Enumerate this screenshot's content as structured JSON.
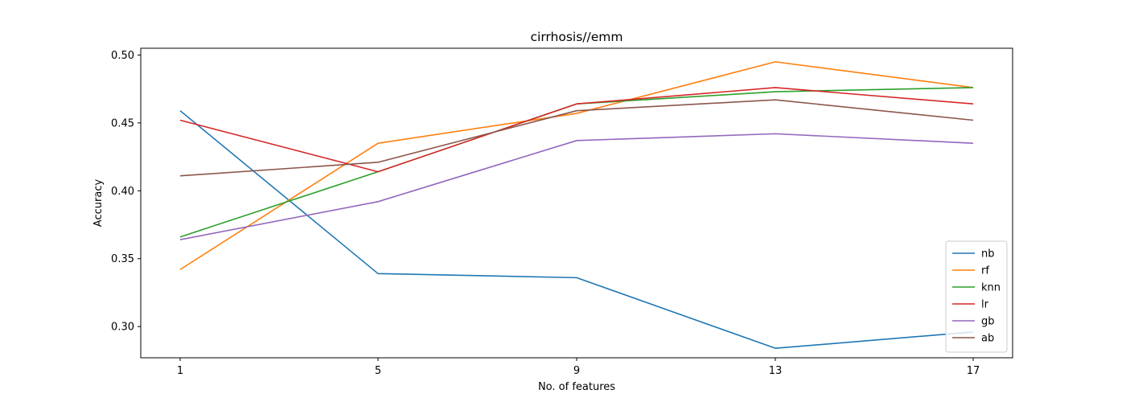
{
  "chart_data": {
    "type": "line",
    "title": "cirrhosis//emm",
    "xlabel": "No. of features",
    "ylabel": "Accuracy",
    "x": [
      1,
      5,
      9,
      13,
      17
    ],
    "x_tick_labels": [
      "1",
      "5",
      "9",
      "13",
      "17"
    ],
    "y_ticks": [
      0.3,
      0.35,
      0.4,
      0.45,
      0.5
    ],
    "y_tick_labels": [
      "0.30",
      "0.35",
      "0.40",
      "0.45",
      "0.50"
    ],
    "ylim": [
      0.277,
      0.505
    ],
    "grid": false,
    "legend_position": "lower-right",
    "series": [
      {
        "name": "nb",
        "color": "#1f77b4",
        "values": [
          0.459,
          0.339,
          0.336,
          0.284,
          0.296
        ]
      },
      {
        "name": "rf",
        "color": "#ff7f0e",
        "values": [
          0.342,
          0.435,
          0.457,
          0.495,
          0.476
        ]
      },
      {
        "name": "knn",
        "color": "#2ca02c",
        "values": [
          0.366,
          0.414,
          0.464,
          0.473,
          0.476
        ]
      },
      {
        "name": "lr",
        "color": "#d62728",
        "values": [
          0.452,
          0.414,
          0.464,
          0.476,
          0.464
        ]
      },
      {
        "name": "gb",
        "color": "#9467bd",
        "values": [
          0.364,
          0.392,
          0.437,
          0.442,
          0.435
        ]
      },
      {
        "name": "ab",
        "color": "#8c564b",
        "values": [
          0.411,
          0.421,
          0.459,
          0.467,
          0.452
        ]
      }
    ]
  }
}
